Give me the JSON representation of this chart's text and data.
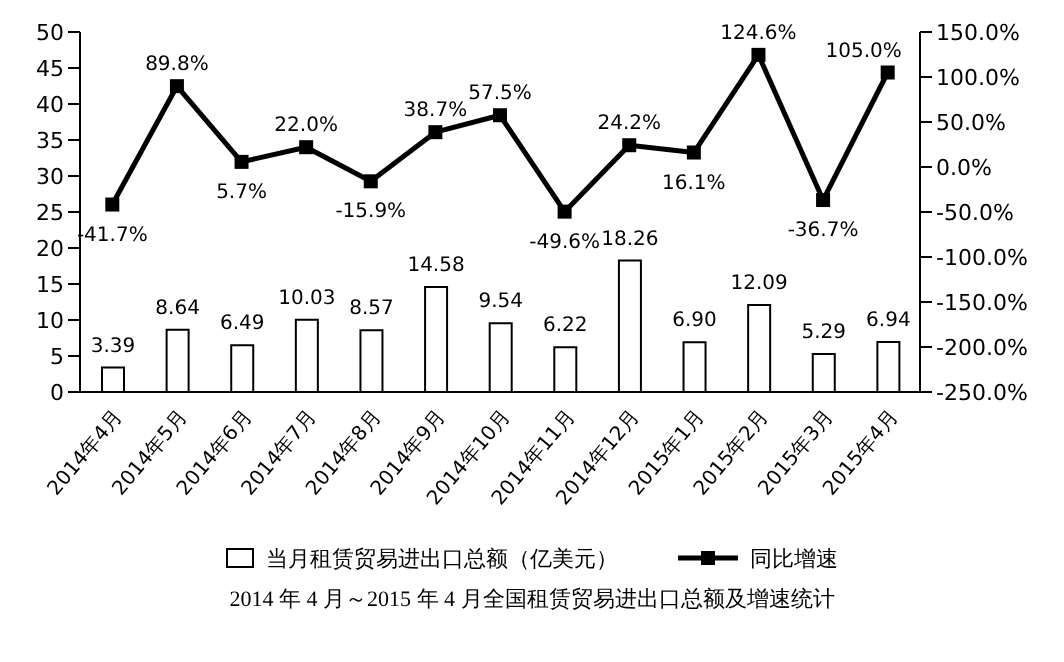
{
  "chart_data": {
    "type": "bar",
    "title": "2014 年 4 月～2015 年 4 月全国租赁贸易进出口总额及增速统计",
    "categories": [
      "2014年4月",
      "2014年5月",
      "2014年6月",
      "2014年7月",
      "2014年8月",
      "2014年9月",
      "2014年10月",
      "2014年11月",
      "2014年12月",
      "2015年1月",
      "2015年2月",
      "2015年3月",
      "2015年4月"
    ],
    "series": [
      {
        "name": "当月租赁贸易进出口总额（亿美元）",
        "color": "#ffffff",
        "values": [
          3.39,
          8.64,
          6.49,
          10.03,
          8.57,
          14.58,
          9.54,
          6.22,
          18.26,
          6.9,
          12.09,
          5.29,
          6.94
        ],
        "value_labels": [
          "3.39",
          "8.64",
          "6.49",
          "10.03",
          "8.57",
          "14.58",
          "9.54",
          "6.22",
          "18.26",
          "6.90",
          "12.09",
          "5.29",
          "6.94"
        ]
      },
      {
        "name": "同比增速",
        "type": "line",
        "axis": "y2",
        "color": "#000000",
        "values": [
          -41.7,
          89.8,
          5.7,
          22.0,
          -15.9,
          38.7,
          57.5,
          -49.6,
          24.2,
          16.1,
          124.6,
          -36.7,
          105.0
        ],
        "value_labels": [
          "-41.7%",
          "89.8%",
          "5.7%",
          "22.0%",
          "-15.9%",
          "38.7%",
          "57.5%",
          "-49.6%",
          "24.2%",
          "16.1%",
          "124.6%",
          "-36.7%",
          "105.0%"
        ]
      }
    ],
    "ylim": [
      0,
      50
    ],
    "yticks": [
      0,
      5,
      10,
      15,
      20,
      25,
      30,
      35,
      40,
      45,
      50
    ],
    "y2lim": [
      -250,
      150
    ],
    "y2ticks": [
      {
        "value": -250,
        "label": "-250.0%"
      },
      {
        "value": -200,
        "label": "-200.0%"
      },
      {
        "value": -150,
        "label": "-150.0%"
      },
      {
        "value": -100,
        "label": "-100.0%"
      },
      {
        "value": -50,
        "label": "-50.0%"
      },
      {
        "value": 0,
        "label": "0.0%"
      },
      {
        "value": 50,
        "label": "50.0%"
      },
      {
        "value": 100,
        "label": "100.0%"
      },
      {
        "value": 150,
        "label": "150.0%"
      }
    ],
    "marker": "square",
    "legend": "bottom",
    "grid": false
  }
}
